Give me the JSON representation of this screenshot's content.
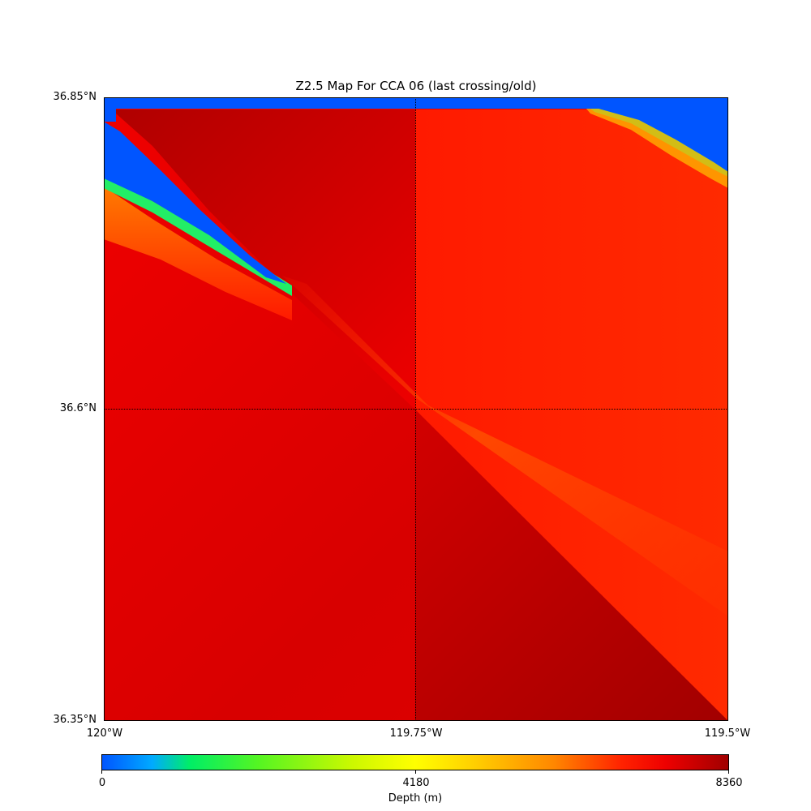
{
  "chart_data": {
    "type": "heatmap",
    "title": "Z2.5 Map For CCA 06 (last crossing/old)",
    "x_ticks": [
      "120°W",
      "119.75°W",
      "119.5°W"
    ],
    "y_ticks": [
      "36.85°N",
      "36.6°N",
      "36.35°N"
    ],
    "xlim": [
      -120.0,
      -119.5
    ],
    "ylim": [
      36.35,
      36.85
    ],
    "grid": true,
    "colorbar": {
      "label": "Depth (m)",
      "ticks": [
        "0",
        "4180",
        "8360"
      ],
      "range": [
        0,
        8360
      ],
      "colormap": "jet-like (blue-green-yellow-red-darkred)"
    },
    "regions": [
      {
        "name": "northeast shallow corner",
        "value_m": 0
      },
      {
        "name": "northwest shallow band",
        "value_m": 0
      },
      {
        "name": "northwest deep wedge",
        "value_m": 8000
      },
      {
        "name": "southeast deep wedge",
        "value_m": 8100
      },
      {
        "name": "central diagonal ridge",
        "value_m": 6000
      },
      {
        "name": "background",
        "value_m": 7400
      }
    ]
  },
  "colors": {
    "shallow": "#0055ff",
    "mid": "#ffff00",
    "deep": "#e60000",
    "deepest": "#a00000",
    "ridge": "#ff5a00"
  }
}
